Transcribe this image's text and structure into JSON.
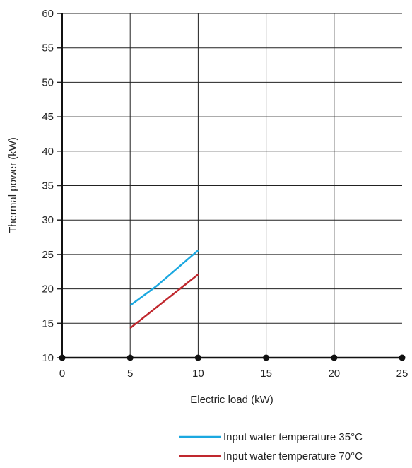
{
  "chart_data": {
    "type": "line",
    "xlabel": "Electric load (kW)",
    "ylabel": "Thermal power (kW)",
    "xlim": [
      0,
      25
    ],
    "ylim": [
      10,
      60
    ],
    "x_ticks": [
      0,
      5,
      10,
      15,
      20,
      25
    ],
    "y_ticks": [
      10,
      15,
      20,
      25,
      30,
      35,
      40,
      45,
      50,
      55,
      60
    ],
    "grid": true,
    "legend_position": "bottom-right",
    "series": [
      {
        "name": "Input water temperature 35°C",
        "color": "#1ba8e0",
        "x": [
          5,
          7,
          10
        ],
        "y": [
          17.6,
          20.5,
          25.6
        ]
      },
      {
        "name": "Input water temperature 70°C",
        "color": "#c0282e",
        "x": [
          5,
          10
        ],
        "y": [
          14.3,
          22.1
        ]
      }
    ]
  }
}
